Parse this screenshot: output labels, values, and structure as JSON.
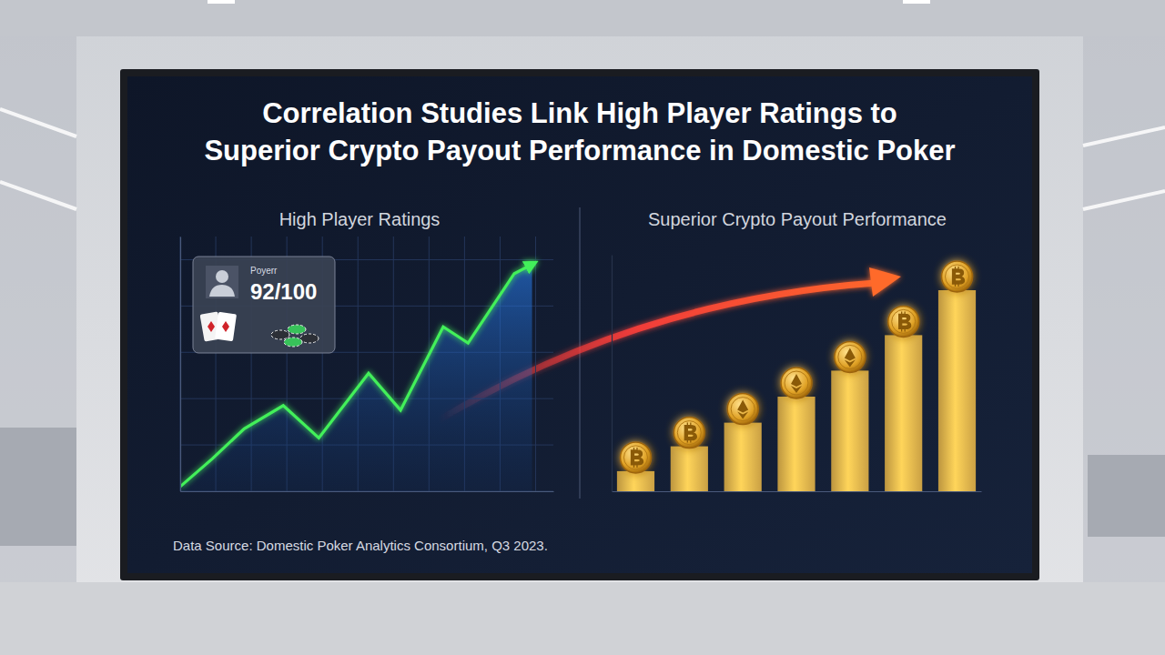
{
  "title": [
    "Correlation Studies Link High Player Ratings to",
    "Superior Crypto Payout Performance in Domestic Poker"
  ],
  "source": "Data Source: Domestic Poker Analytics Consortium, Q3 2023.",
  "chart_data": [
    {
      "type": "line",
      "title": "High Player Ratings",
      "x": [
        0,
        9,
        18,
        29,
        39,
        53,
        62,
        74,
        81,
        94,
        99
      ],
      "values": [
        2,
        14,
        27,
        37,
        23,
        51,
        35,
        71,
        64,
        94,
        98
      ],
      "color": "#43f05a",
      "xlim": [
        0,
        105
      ],
      "xticks": [
        0,
        10,
        20,
        30,
        40,
        50,
        60,
        70,
        80,
        90,
        100
      ],
      "ylim": [
        0,
        110
      ],
      "yticks": [
        0,
        20,
        40,
        60,
        80,
        100
      ],
      "grid": true,
      "tick_labels": false,
      "annotations": [
        "Poyerr",
        "92/100"
      ]
    },
    {
      "type": "bar",
      "title": "Superior Crypto Payout Performance",
      "categories": [
        null,
        null,
        null,
        null,
        null,
        null,
        null
      ],
      "values": [
        8.5,
        19,
        29,
        40,
        51,
        66,
        85
      ],
      "color": "#e9b94e",
      "ylim": [
        0,
        100
      ],
      "yticks": [
        0,
        100
      ],
      "grid": false,
      "tick_labels": false
    }
  ]
}
